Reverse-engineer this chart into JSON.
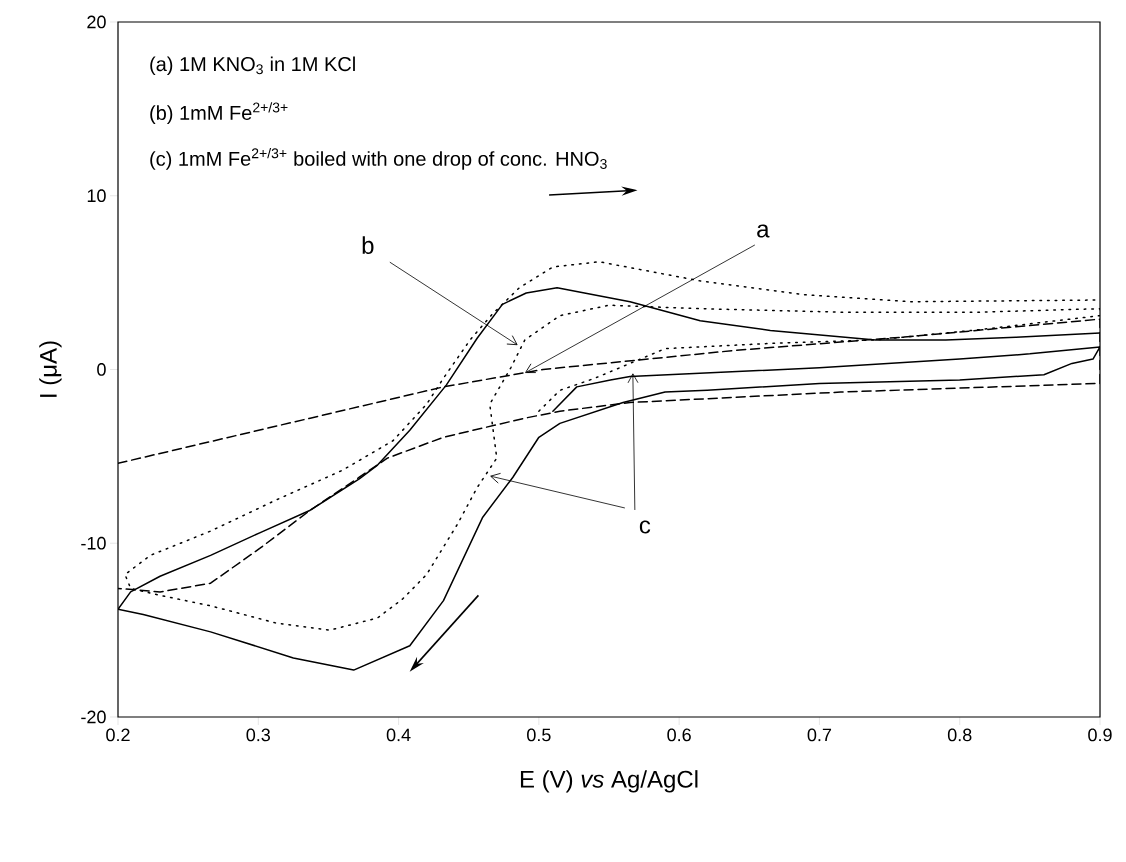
{
  "chart_data": {
    "type": "line",
    "xlabel": "E (V) *vs* Ag/AgCl",
    "ylabel": "I (μA)",
    "xlim": [
      0.2,
      0.9
    ],
    "ylim": [
      -20,
      20
    ],
    "xticks": [
      0.2,
      0.3,
      0.4,
      0.5,
      0.6,
      0.7,
      0.8,
      0.9
    ],
    "yticks": [
      -20,
      -10,
      0,
      10,
      20
    ],
    "marker": "none",
    "series": [
      {
        "color": "#000000",
        "line_style": "dashed",
        "x": [
          0.2,
          0.337,
          0.432,
          0.503,
          0.515,
          0.64,
          0.765,
          0.9,
          0.9,
          0.715,
          0.565,
          0.515,
          0.49,
          0.432,
          0.392,
          0.372,
          0.337,
          0.301,
          0.266,
          0.23,
          0.2
        ],
        "values": [
          -5.4,
          -2.8,
          -1.0,
          0.0,
          0.1,
          1.1,
          1.9,
          2.9,
          -0.8,
          -1.3,
          -1.9,
          -2.4,
          -2.8,
          -3.9,
          -5.1,
          -6.2,
          -8.1,
          -10.3,
          -12.3,
          -12.8,
          -12.6
        ]
      },
      {
        "color": "#000000",
        "line_style": "dotted",
        "x": [
          0.5,
          0.515,
          0.54,
          0.59,
          0.665,
          0.74,
          0.815,
          0.9,
          0.9,
          0.815,
          0.715,
          0.615,
          0.55,
          0.515,
          0.49,
          0.48,
          0.465,
          0.47,
          0.456,
          0.442,
          0.42,
          0.403,
          0.385,
          0.351,
          0.313,
          0.266,
          0.23,
          0.209,
          0.205,
          0.223,
          0.266,
          0.313,
          0.36,
          0.396,
          0.42,
          0.432,
          0.451,
          0.467,
          0.486,
          0.51,
          0.543,
          0.615,
          0.69,
          0.765,
          0.9
        ],
        "values": [
          -2.4,
          -1.2,
          -0.5,
          1.2,
          1.5,
          1.7,
          2.3,
          3.1,
          3.5,
          3.3,
          3.3,
          3.5,
          3.7,
          3.1,
          1.7,
          0.1,
          -2.0,
          -5.1,
          -6.8,
          -8.9,
          -11.8,
          -13.2,
          -14.3,
          -15.0,
          -14.6,
          -13.6,
          -13.0,
          -12.6,
          -11.8,
          -10.7,
          -9.3,
          -7.5,
          -5.8,
          -4.1,
          -2.0,
          -0.5,
          1.7,
          3.2,
          4.7,
          5.9,
          6.2,
          5.1,
          4.3,
          3.9,
          4.0
        ]
      },
      {
        "color": "#000000",
        "line_style": "solid",
        "x": [
          0.51,
          0.527,
          0.551,
          0.565,
          0.7,
          0.8,
          0.85,
          0.9,
          0.895,
          0.88,
          0.86,
          0.8,
          0.7,
          0.62,
          0.59,
          0.56,
          0.515,
          0.5,
          0.4815,
          0.46,
          0.432,
          0.408,
          0.368,
          0.325,
          0.266,
          0.218,
          0.2,
          0.209,
          0.23,
          0.266,
          0.301,
          0.337,
          0.372,
          0.385,
          0.408,
          0.434,
          0.456,
          0.474,
          0.491,
          0.513,
          0.565,
          0.615,
          0.665,
          0.74,
          0.79,
          0.84,
          0.9
        ],
        "values": [
          -2.4,
          -1.0,
          -0.6,
          -0.4,
          0.1,
          0.6,
          0.9,
          1.3,
          0.6,
          0.35,
          -0.3,
          -0.6,
          -0.8,
          -1.2,
          -1.3,
          -1.9,
          -3.1,
          -3.9,
          -6.2,
          -8.5,
          -13.3,
          -15.9,
          -17.3,
          -16.6,
          -15.1,
          -14.1,
          -13.8,
          -12.8,
          -11.9,
          -10.7,
          -9.4,
          -8.1,
          -6.3,
          -5.5,
          -3.5,
          -0.9,
          1.8,
          3.75,
          4.4,
          4.7,
          3.9,
          2.8,
          2.25,
          1.7,
          1.7,
          1.85,
          2.1
        ]
      }
    ],
    "annotations": [
      "(a) 1M KNO$_{3}$ in 1M KCl",
      "(b) 1mM Fe$^{2+/3+}$",
      "(c) 1mM Fe$^{2+/3+}$ boiled with one drop of conc. HNO$_{3}$",
      {
        "text": "a",
        "x": 0.49,
        "y": -0.2
      },
      {
        "text": "b",
        "x": 0.485,
        "y": 1.4
      },
      {
        "text": "c",
        "x": 0.567,
        "y": -0.2
      }
    ]
  }
}
